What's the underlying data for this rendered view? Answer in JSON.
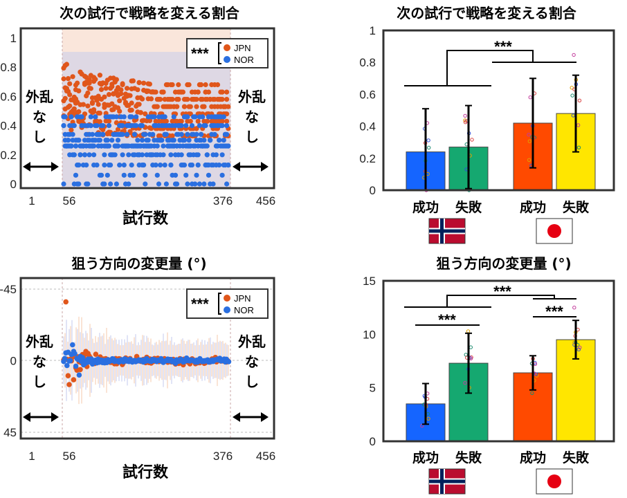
{
  "chart_data": [
    {
      "type": "scatter",
      "title": "次の試行で戦略を変える割合",
      "xlabel": "試行数",
      "x_ticks": [
        "1",
        "56",
        "376",
        "456"
      ],
      "y_ticks": [
        "0",
        "0.2",
        "0.4",
        "0.6",
        "0.8",
        "1"
      ],
      "ylim": [
        0,
        1
      ],
      "xlim": [
        1,
        456
      ],
      "perturbation_window": [
        56,
        376
      ],
      "side_note": "外乱なし",
      "legend": {
        "significance": "***",
        "entries": [
          "JPN",
          "NOR"
        ],
        "placement": "top-right"
      },
      "series": [
        {
          "name": "JPN",
          "color": "#E0561B",
          "approx_mean": 0.5,
          "approx_range": [
            0.3,
            0.82
          ]
        },
        {
          "name": "NOR",
          "color": "#2A6FE0",
          "approx_mean": 0.3,
          "approx_range": [
            0.0,
            0.5
          ]
        }
      ]
    },
    {
      "type": "bar",
      "title": "次の試行で戦略を変える割合",
      "categories": [
        "成功",
        "失敗",
        "成功",
        "失敗"
      ],
      "groups": [
        {
          "categories": [
            0,
            1
          ],
          "flag": "norway"
        },
        {
          "categories": [
            2,
            3
          ],
          "flag": "japan"
        }
      ],
      "values": [
        0.24,
        0.27,
        0.42,
        0.48
      ],
      "errors": [
        0.27,
        0.26,
        0.28,
        0.24
      ],
      "colors": [
        "#1565FF",
        "#15A870",
        "#FF4A00",
        "#FFE600"
      ],
      "y_ticks": [
        "0",
        "0.2",
        "0.4",
        "0.6",
        "0.8",
        "1"
      ],
      "ylim": [
        0,
        1
      ],
      "significance": [
        {
          "between": "groups",
          "label": "***"
        }
      ]
    },
    {
      "type": "scatter",
      "title": "狙う方向の変更量 (°)",
      "xlabel": "試行数",
      "x_ticks": [
        "1",
        "56",
        "376",
        "456"
      ],
      "y_ticks": [
        "-45",
        "0",
        "45"
      ],
      "ylim": [
        -45,
        45
      ],
      "xlim": [
        1,
        456
      ],
      "perturbation_window": [
        56,
        376
      ],
      "side_note": "外乱なし",
      "legend": {
        "significance": "***",
        "entries": [
          "JPN",
          "NOR"
        ],
        "placement": "top-right"
      },
      "series": [
        {
          "name": "JPN",
          "color": "#E0561B",
          "approx_range": [
            -40,
            15
          ]
        },
        {
          "name": "NOR",
          "color": "#2A6FE0",
          "approx_range": [
            -12,
            10
          ]
        }
      ]
    },
    {
      "type": "bar",
      "title": "狙う方向の変更量 (°)",
      "categories": [
        "成功",
        "失敗",
        "成功",
        "失敗"
      ],
      "groups": [
        {
          "categories": [
            0,
            1
          ],
          "flag": "norway"
        },
        {
          "categories": [
            2,
            3
          ],
          "flag": "japan"
        }
      ],
      "values": [
        3.5,
        7.3,
        6.4,
        9.5
      ],
      "errors": [
        1.9,
        2.8,
        1.6,
        1.8
      ],
      "colors": [
        "#1565FF",
        "#15A870",
        "#FF4A00",
        "#FFE600"
      ],
      "y_ticks": [
        "0",
        "5",
        "10",
        "15"
      ],
      "ylim": [
        0,
        15
      ],
      "significance": [
        {
          "between": "groups",
          "label": "***"
        },
        {
          "between": [
            0,
            1
          ],
          "label": "***"
        },
        {
          "between": [
            2,
            3
          ],
          "label": "***"
        }
      ]
    }
  ]
}
